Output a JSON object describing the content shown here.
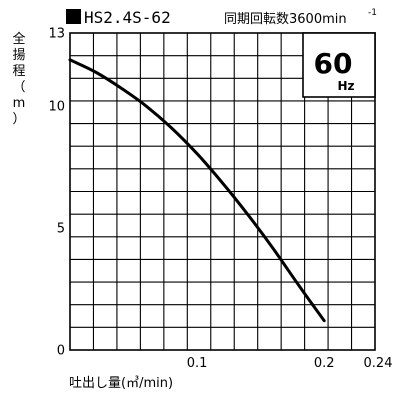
{
  "header": {
    "model": "HS2.4S-62",
    "speed_label": "同期回転数3600min",
    "speed_exponent": "-1"
  },
  "frequency_badge": {
    "value": "60",
    "unit": "Hz"
  },
  "chart_data": {
    "type": "line",
    "title": "HS2.4S-62",
    "xlabel": "吐出し量(㎥/min)",
    "ylabel": "全揚程(m)",
    "ylabel_chars": [
      "全",
      "揚",
      "程",
      "（",
      "m",
      "）"
    ],
    "xlim": [
      0,
      0.24
    ],
    "ylim": [
      0,
      13
    ],
    "grid": true,
    "x_gridlines": 13,
    "y_gridlines": 14,
    "x_tick_labels": [
      {
        "value": 0.1,
        "label": "0.1"
      },
      {
        "value": 0.2,
        "label": "0.2"
      },
      {
        "value": 0.24,
        "label": "0.24"
      }
    ],
    "y_tick_labels": [
      {
        "value": 0,
        "label": "0"
      },
      {
        "value": 5,
        "label": "5"
      },
      {
        "value": 10,
        "label": "10"
      },
      {
        "value": 13,
        "label": "13"
      }
    ],
    "series": [
      {
        "color": "#000000",
        "x": [
          0.0,
          0.02,
          0.04,
          0.06,
          0.08,
          0.1,
          0.12,
          0.14,
          0.16,
          0.18,
          0.2
        ],
        "y": [
          11.9,
          11.4,
          10.75,
          10.0,
          9.1,
          8.05,
          6.85,
          5.55,
          4.15,
          2.65,
          1.2
        ]
      }
    ]
  }
}
